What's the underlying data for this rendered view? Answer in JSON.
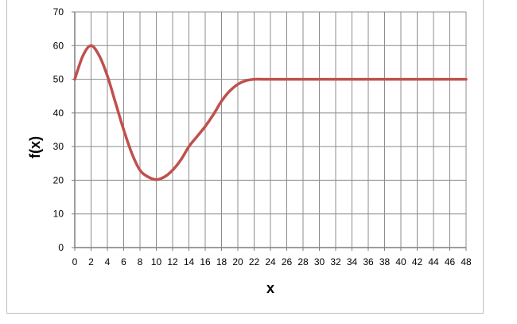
{
  "chart_data": {
    "type": "line",
    "title": "",
    "xlabel": "x",
    "ylabel": "f(x)",
    "xlim": [
      0,
      48
    ],
    "ylim": [
      0,
      70
    ],
    "x_ticks": [
      0,
      2,
      4,
      6,
      8,
      10,
      12,
      14,
      16,
      18,
      20,
      22,
      24,
      26,
      28,
      30,
      32,
      34,
      36,
      38,
      40,
      42,
      44,
      46,
      48
    ],
    "y_ticks": [
      0,
      10,
      20,
      30,
      40,
      50,
      60,
      70
    ],
    "grid": true,
    "legend": "none",
    "series": [
      {
        "color": "#c0504d",
        "x": [
          0,
          1,
          2,
          3,
          4,
          5,
          6,
          7,
          8,
          9,
          10,
          11,
          12,
          13,
          14,
          15,
          16,
          17,
          18,
          19,
          20,
          21,
          22,
          23,
          24,
          26,
          28,
          30,
          32,
          34,
          36,
          38,
          40,
          42,
          44,
          46,
          48
        ],
        "y": [
          50,
          57,
          60,
          57,
          51,
          43,
          35,
          28,
          23,
          21,
          20.2,
          21,
          23,
          26,
          30,
          33,
          36,
          39.5,
          43.5,
          46.5,
          48.5,
          49.6,
          50,
          50,
          50,
          50,
          50,
          50,
          50,
          50,
          50,
          50,
          50,
          50,
          50,
          50,
          50
        ]
      }
    ]
  }
}
